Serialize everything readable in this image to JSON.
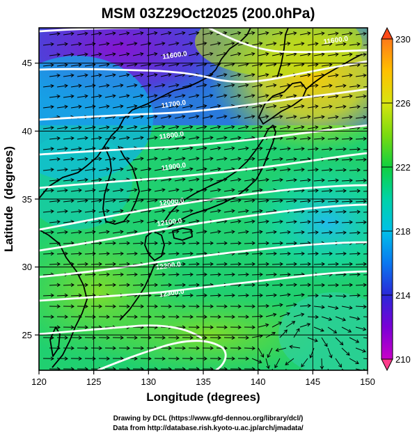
{
  "figure": {
    "title": "MSM 03Z29Oct2025 (200.0hPa)",
    "credit_line1": "Drawing by DCL (https://www.gfd-dennou.org/library/dcl/)",
    "credit_line2": "Data from http://database.rish.kyoto-u.ac.jp/arch/jmadata/"
  },
  "map": {
    "xlabel": "Longitude (degrees)",
    "ylabel": "Latitude  (degrees)",
    "xlim": [
      120,
      150
    ],
    "ylim": [
      22.4,
      47.6
    ],
    "xticks": [
      120,
      125,
      130,
      135,
      140,
      145,
      150
    ],
    "yticks": [
      25,
      30,
      35,
      40,
      45
    ],
    "grid": true,
    "fill": "temperature shading",
    "vectors": "wind streamlines",
    "contours": "white geopotential height contours"
  },
  "colorbar": {
    "min": 210,
    "max": 230,
    "tick_labels": [
      "230",
      "226",
      "222",
      "218",
      "214",
      "210"
    ],
    "colors": [
      "#ff3c8c",
      "#c800c8",
      "#7a00d6",
      "#2a28d8",
      "#0a78f0",
      "#00c0e8",
      "#00d2a8",
      "#10d040",
      "#7ada10",
      "#d8e410",
      "#ffc000",
      "#ff4a18"
    ]
  },
  "contour_labels": [
    {
      "text": "11600.0",
      "lon": 131.3,
      "lat": 45.3
    },
    {
      "text": "11700.0",
      "lon": 131.2,
      "lat": 41.7
    },
    {
      "text": "11800.0",
      "lon": 131.0,
      "lat": 39.4
    },
    {
      "text": "11900.0",
      "lon": 131.2,
      "lat": 37.1
    },
    {
      "text": "12000.0",
      "lon": 131.0,
      "lat": 34.5
    },
    {
      "text": "12100.0",
      "lon": 130.8,
      "lat": 33.0
    },
    {
      "text": "12200.0",
      "lon": 130.7,
      "lat": 29.8
    },
    {
      "text": "12300.0",
      "lon": 131.0,
      "lat": 27.8
    },
    {
      "text": "11600.0",
      "lon": 146.0,
      "lat": 46.4
    }
  ],
  "chart_data": {
    "type": "map",
    "title": "MSM 03Z29Oct2025 (200.0hPa)",
    "xlabel": "Longitude (degrees)",
    "ylabel": "Latitude  (degrees)",
    "x_range": [
      120,
      150
    ],
    "y_range": [
      22.4,
      47.6
    ],
    "colorbar_range": [
      210,
      230
    ],
    "colorbar_ticks": [
      210,
      214,
      218,
      222,
      226,
      230
    ]
  }
}
